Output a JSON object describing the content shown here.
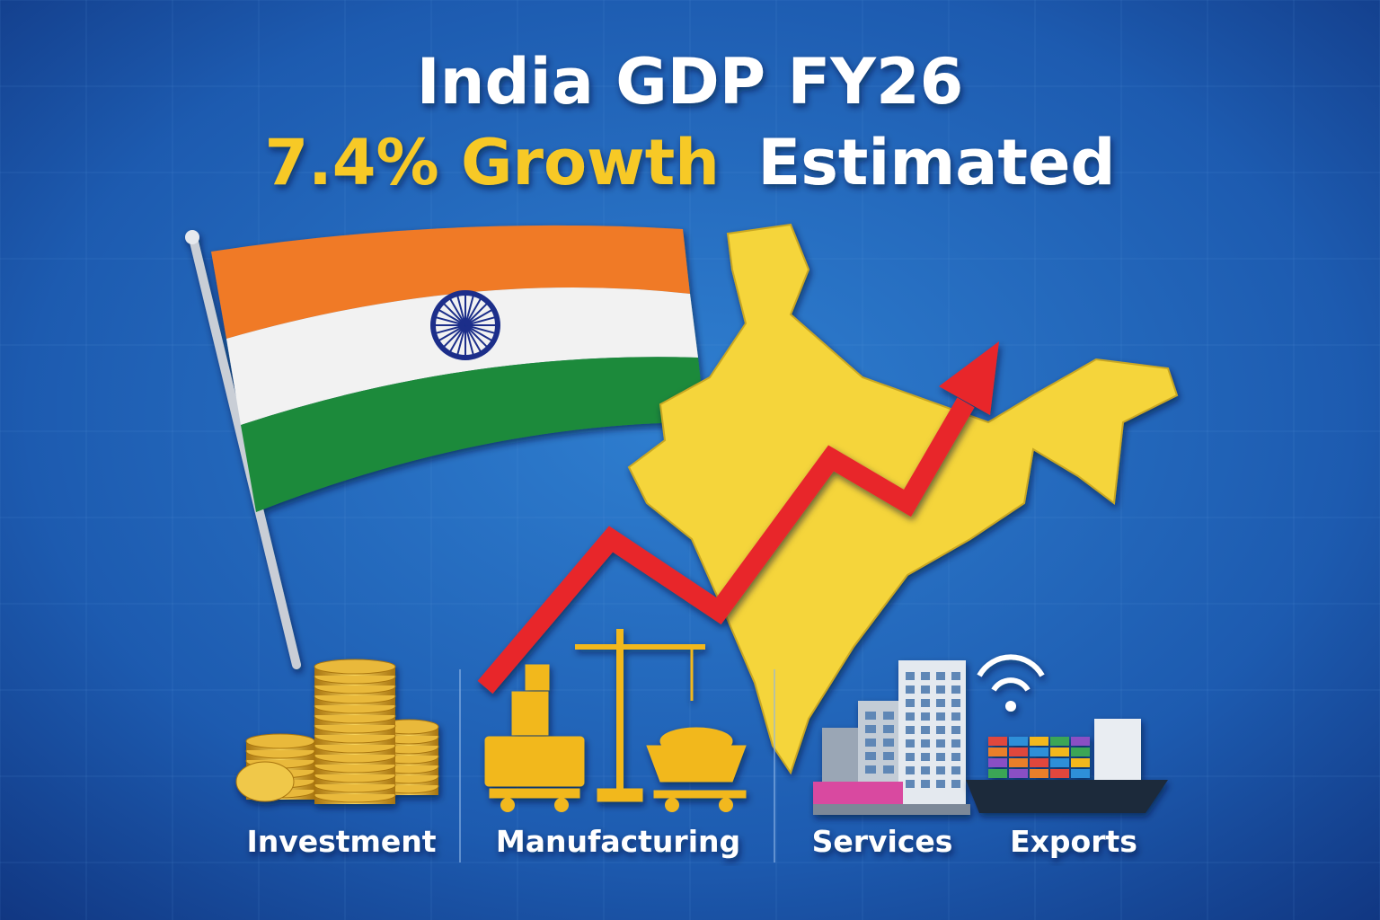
{
  "header": {
    "title": "India GDP FY26",
    "highlight": "7.4% Growth",
    "subtitle": "Estimated"
  },
  "sectors": [
    {
      "label": "Investment"
    },
    {
      "label": "Manufacturing"
    },
    {
      "label": "Services"
    },
    {
      "label": "Exports"
    }
  ]
}
